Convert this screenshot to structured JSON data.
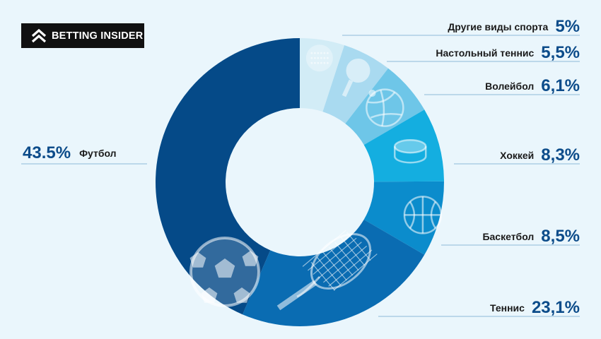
{
  "brand": {
    "logo_text": "BETTING INSIDER"
  },
  "chart_data": {
    "type": "pie",
    "style": "donut",
    "slices": [
      {
        "label": "Другие виды спорта",
        "value": 5,
        "value_label": "5%",
        "color": "#d2ecf6",
        "icon": "golf-ball-icon"
      },
      {
        "label": "Настольный теннис",
        "value": 5.5,
        "value_label": "5,5%",
        "color": "#a9daf0",
        "icon": "table-tennis-paddle-icon"
      },
      {
        "label": "Волейбол",
        "value": 6.1,
        "value_label": "6,1%",
        "color": "#6ec6e8",
        "icon": "volleyball-icon"
      },
      {
        "label": "Хоккей",
        "value": 8.3,
        "value_label": "8,3%",
        "color": "#14aee0",
        "icon": "hockey-puck-icon"
      },
      {
        "label": "Баскетбол",
        "value": 8.5,
        "value_label": "8,5%",
        "color": "#0b8ccc",
        "icon": "basketball-icon"
      },
      {
        "label": "Теннис",
        "value": 23.1,
        "value_label": "23,1%",
        "color": "#0a6cb2",
        "icon": "tennis-racket-icon"
      },
      {
        "label": "Футбол",
        "value": 43.5,
        "value_label": "43.5%",
        "color": "#054a88",
        "icon": "soccer-ball-icon"
      }
    ]
  }
}
